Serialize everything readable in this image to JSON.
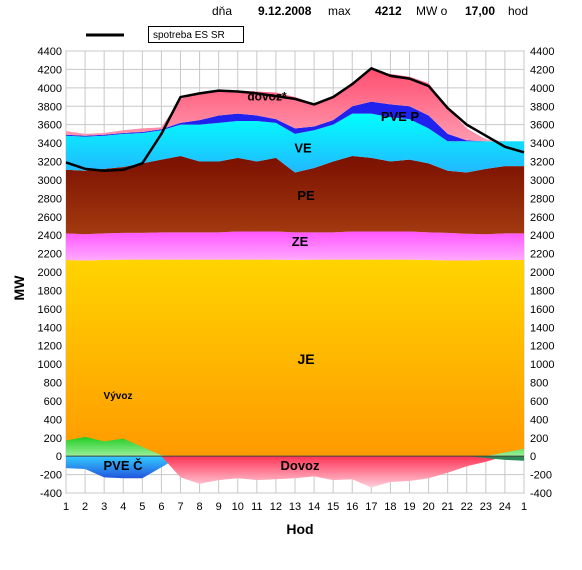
{
  "header": {
    "day_label": "dňa",
    "date": "9.12.2008",
    "max_label": "max",
    "max_value": "4212",
    "unit_label": "MW o",
    "hour_value": "17,00",
    "hour_label": "hod"
  },
  "colors": {
    "plot_bg": "#ffffff",
    "grid": "#c0c0c0",
    "je_top": "#ffd400",
    "je_bottom": "#ff9a00",
    "ze": "#ff66ff",
    "pe": "#8b1a0a",
    "ve": "#00e5ff",
    "pve_p": "#1a1aff",
    "dovoz": "#ff6a8a",
    "vyvoz": "#33cc33",
    "pve_c": "#2aa6e6",
    "spotreba": "#000000"
  },
  "chart_data": {
    "type": "area",
    "xlabel": "Hod",
    "ylabel": "MW",
    "ylim": [
      -400,
      4400
    ],
    "yticks": [
      -400,
      -200,
      0,
      200,
      400,
      600,
      800,
      1000,
      1200,
      1400,
      1600,
      1800,
      2000,
      2200,
      2400,
      2600,
      2800,
      3000,
      3200,
      3400,
      3600,
      3800,
      4000,
      4200,
      4400
    ],
    "x_tick_labels": [
      "1",
      "2",
      "3",
      "4",
      "5",
      "6",
      "7",
      "8",
      "9",
      "10",
      "11",
      "12",
      "13",
      "14",
      "15",
      "16",
      "17",
      "18",
      "19",
      "20",
      "21",
      "22",
      "23",
      "24",
      "1"
    ],
    "grid": true,
    "legend": [
      {
        "name": "spotreba ES SR",
        "style": "line"
      }
    ],
    "series_labels": [
      "JE",
      "ZE",
      "PE",
      "VE",
      "PVE P",
      "dovoz*",
      "Vývoz",
      "PVE Č",
      "Dovoz"
    ],
    "stack_top": {
      "JE": [
        2130,
        2125,
        2130,
        2135,
        2135,
        2135,
        2135,
        2135,
        2135,
        2135,
        2135,
        2135,
        2130,
        2135,
        2135,
        2135,
        2135,
        2135,
        2135,
        2130,
        2125,
        2125,
        2130,
        2130,
        2130
      ],
      "ZE": [
        2420,
        2410,
        2420,
        2425,
        2425,
        2430,
        2430,
        2430,
        2430,
        2440,
        2440,
        2440,
        2430,
        2430,
        2430,
        2440,
        2440,
        2440,
        2440,
        2430,
        2425,
        2415,
        2410,
        2420,
        2420
      ],
      "PE": [
        3110,
        3100,
        3120,
        3140,
        3180,
        3220,
        3260,
        3200,
        3200,
        3240,
        3200,
        3240,
        3080,
        3130,
        3200,
        3260,
        3240,
        3200,
        3220,
        3180,
        3100,
        3080,
        3120,
        3150,
        3150
      ],
      "VE": [
        3480,
        3470,
        3480,
        3500,
        3510,
        3540,
        3600,
        3600,
        3620,
        3640,
        3640,
        3620,
        3500,
        3540,
        3600,
        3720,
        3720,
        3680,
        3660,
        3560,
        3420,
        3420,
        3420,
        3420,
        3420
      ],
      "PVE_P": [
        3490,
        3480,
        3490,
        3510,
        3520,
        3550,
        3620,
        3650,
        3700,
        3720,
        3700,
        3660,
        3560,
        3580,
        3650,
        3800,
        3850,
        3820,
        3800,
        3700,
        3500,
        3430,
        3420,
        3420,
        3420
      ],
      "dovoz": [
        3530,
        3500,
        3510,
        3540,
        3560,
        3570,
        3880,
        3950,
        3980,
        3970,
        3960,
        3950,
        3900,
        3830,
        3900,
        4060,
        4200,
        4150,
        4120,
        4050,
        3780,
        3560,
        3440,
        3420,
        3420
      ]
    },
    "spotreba_es_sr": [
      3190,
      3120,
      3100,
      3110,
      3180,
      3500,
      3900,
      3940,
      3970,
      3960,
      3940,
      3910,
      3880,
      3820,
      3900,
      4040,
      4212,
      4130,
      4100,
      4020,
      3780,
      3600,
      3480,
      3360,
      3300
    ],
    "vyvoz": [
      170,
      210,
      160,
      190,
      100,
      10,
      0,
      0,
      0,
      0,
      0,
      0,
      0,
      0,
      0,
      0,
      0,
      0,
      0,
      0,
      0,
      0,
      0,
      40,
      80
    ],
    "pve_c": [
      -130,
      -140,
      -230,
      -240,
      -240,
      -120,
      0,
      0,
      0,
      0,
      0,
      0,
      0,
      0,
      0,
      0,
      0,
      0,
      0,
      0,
      0,
      0,
      0,
      0,
      0
    ],
    "dovoz_neg": [
      0,
      0,
      0,
      0,
      0,
      0,
      -230,
      -300,
      -260,
      -240,
      -260,
      -250,
      -240,
      -220,
      -260,
      -250,
      -340,
      -280,
      -270,
      -240,
      -180,
      -110,
      -60,
      0,
      0
    ],
    "export_hours_tail": [
      0,
      0,
      0,
      0,
      0,
      0,
      0,
      0,
      0,
      0,
      0,
      0,
      0,
      0,
      0,
      0,
      0,
      0,
      0,
      0,
      0,
      0,
      -20,
      -40,
      -50
    ]
  }
}
